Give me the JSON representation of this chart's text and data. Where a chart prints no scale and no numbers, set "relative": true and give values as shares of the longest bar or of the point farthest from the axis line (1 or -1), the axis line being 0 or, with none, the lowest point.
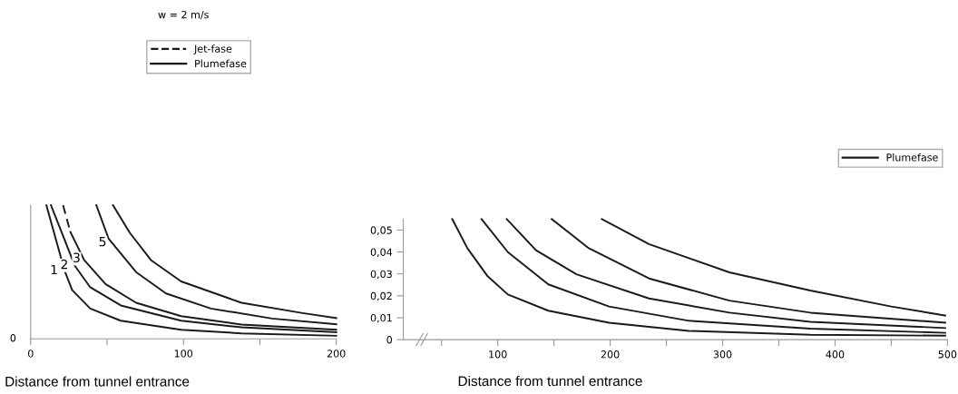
{
  "chart_data": [
    {
      "type": "line",
      "relative": true,
      "subtitle": "w = 2 m/s",
      "xlabel": "Distance from tunnel entrance",
      "xlim": [
        0,
        200
      ],
      "xticks": [
        0,
        {
          "value": 50,
          "label": null
        },
        100,
        {
          "value": 150,
          "label": null
        },
        200
      ],
      "legend": "top",
      "grid": false,
      "marker": "none",
      "line_style": "solid",
      "annotations": [
        "0",
        {
          "text": "1",
          "x": 21.2,
          "y": 0.51
        },
        {
          "text": "2",
          "x": 28,
          "y": 0.55
        },
        {
          "text": "3",
          "x": 36,
          "y": 0.6
        },
        {
          "text": "5",
          "x": 53,
          "y": 0.72
        }
      ],
      "series": [
        {
          "name": "Jet-fase",
          "color": "#1a1a1a",
          "line_style": "dashed",
          "x": [
            21.2,
            26
          ],
          "values": [
            1.0,
            0.8
          ]
        },
        {
          "name": "Plumefase",
          "color": "#1a1a1a",
          "x": [
            10.3,
            22.2,
            27.2,
            39,
            58.9,
            98.5,
            138,
            200
          ],
          "values": [
            1.0,
            0.511,
            0.364,
            0.227,
            0.136,
            0.068,
            0.041,
            0.023
          ]
        },
        {
          "color": "#1a1a1a",
          "x": [
            13.3,
            29,
            39,
            59,
            98.5,
            138,
            200
          ],
          "values": [
            1.0,
            0.545,
            0.386,
            0.25,
            0.136,
            0.086,
            0.05
          ]
        },
        {
          "color": "#1a1a1a",
          "x": [
            26,
            35,
            49,
            69,
            98.5,
            138,
            200
          ],
          "values": [
            0.8,
            0.59,
            0.41,
            0.27,
            0.17,
            0.107,
            0.068
          ]
        },
        {
          "color": "#1a1a1a",
          "x": [
            43,
            51,
            69,
            88.6,
            118,
            158,
            200
          ],
          "values": [
            1.0,
            0.75,
            0.5,
            0.34,
            0.227,
            0.152,
            0.109
          ]
        },
        {
          "color": "#1a1a1a",
          "x": [
            53.9,
            64.8,
            78.7,
            98.5,
            138,
            178,
            200
          ],
          "values": [
            1.0,
            0.795,
            0.59,
            0.43,
            0.27,
            0.193,
            0.155
          ]
        }
      ]
    },
    {
      "type": "line",
      "xlabel": "Distance from tunnel entrance",
      "xlim": [
        16,
        500
      ],
      "ylim": [
        0,
        0.055
      ],
      "xticks": [
        {
          "value": 50,
          "label": null
        },
        100,
        {
          "value": 150,
          "label": null
        },
        200,
        {
          "value": 250,
          "label": null
        },
        300,
        {
          "value": 350,
          "label": null
        },
        400,
        {
          "value": 450,
          "label": null
        },
        500
      ],
      "yticks": [
        0,
        {
          "value": 0.01,
          "label": "0,01"
        },
        {
          "value": 0.02,
          "label": "0,02"
        },
        {
          "value": 0.03,
          "label": "0,03"
        },
        {
          "value": 0.04,
          "label": "0,04"
        },
        {
          "value": 0.05,
          "label": "0,05"
        }
      ],
      "legend": "top right",
      "grid": false,
      "marker": "none",
      "line_style": "solid",
      "series": [
        {
          "name": "Plumefase",
          "color": "#1a1a1a",
          "x": [
            59.5,
            73,
            91,
            109,
            145,
            199,
            270,
            378,
            498
          ],
          "values": [
            0.055,
            0.0417,
            0.0289,
            0.0206,
            0.0132,
            0.0077,
            0.004,
            0.0022,
            0.0018
          ]
        },
        {
          "color": "#1a1a1a",
          "x": [
            85.6,
            109,
            145,
            199,
            270,
            378,
            498
          ],
          "values": [
            0.055,
            0.0399,
            0.0252,
            0.0151,
            0.0086,
            0.005,
            0.0031
          ]
        },
        {
          "color": "#1a1a1a",
          "x": [
            108,
            134,
            170,
            234.5,
            306,
            378,
            498
          ],
          "values": [
            0.055,
            0.0408,
            0.0298,
            0.0188,
            0.0123,
            0.0081,
            0.0053
          ]
        },
        {
          "color": "#1a1a1a",
          "x": [
            148,
            181,
            234.5,
            306,
            378,
            498
          ],
          "values": [
            0.055,
            0.0417,
            0.0279,
            0.0178,
            0.0123,
            0.0077
          ]
        },
        {
          "color": "#1a1a1a",
          "x": [
            192.6,
            234.5,
            306,
            378,
            450,
            498
          ],
          "values": [
            0.055,
            0.0436,
            0.0307,
            0.0224,
            0.0151,
            0.011
          ]
        }
      ]
    }
  ]
}
